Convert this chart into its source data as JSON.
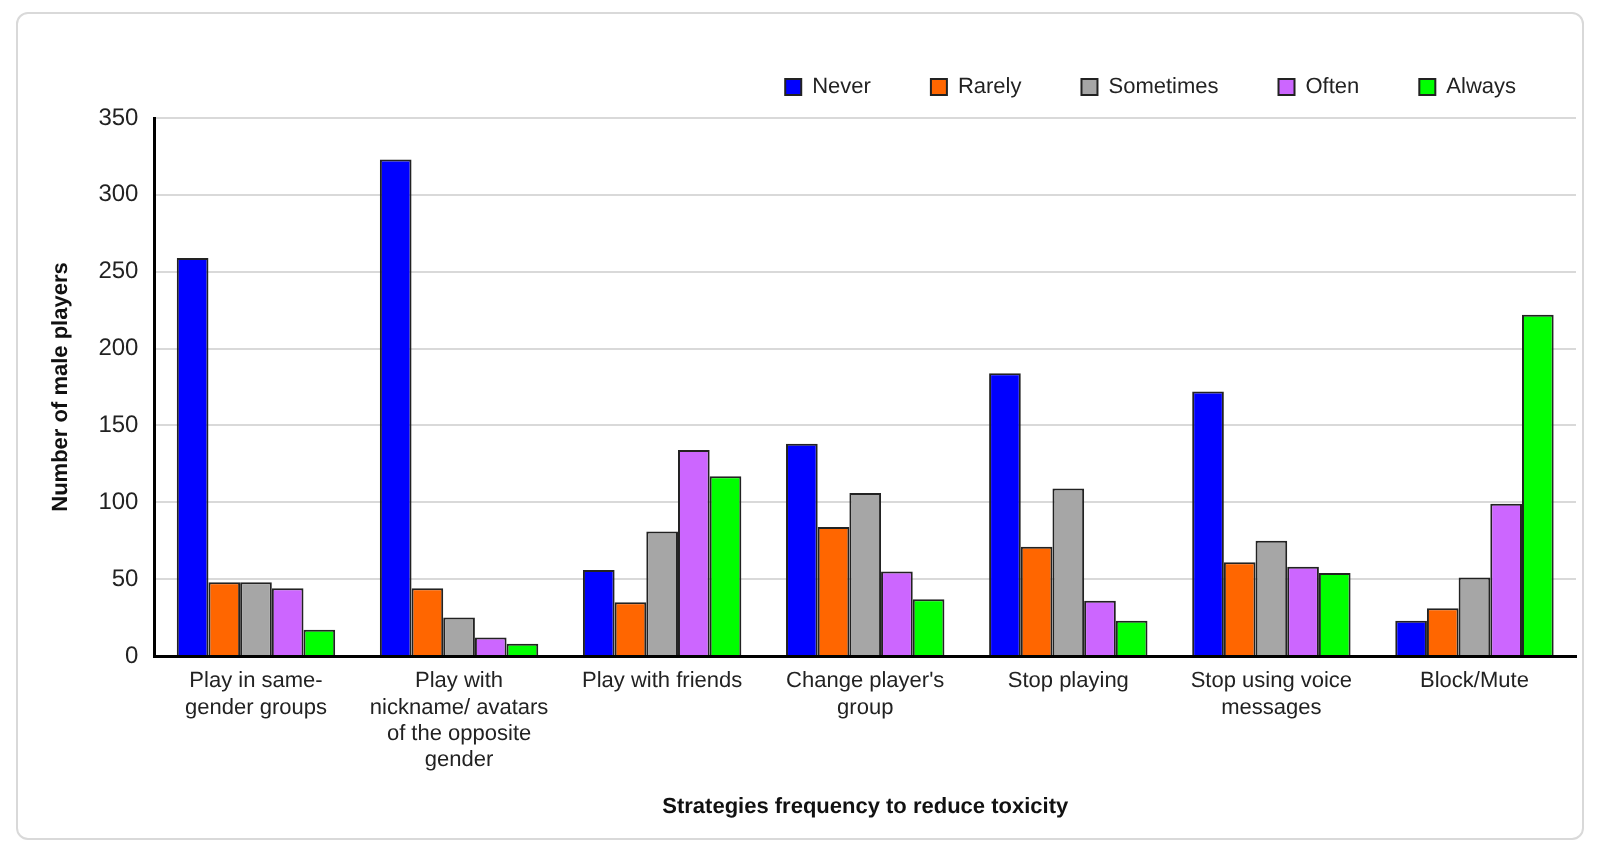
{
  "chart_data": {
    "type": "bar",
    "xlabel": "Strategies frequency to reduce toxicity",
    "ylabel": "Number of male players",
    "categories": [
      "Play in same-gender groups",
      "Play with nickname/ avatars of the opposite gender",
      "Play with friends",
      "Change player's group",
      "Stop playing",
      "Stop using voice messages",
      "Block/Mute"
    ],
    "series": [
      {
        "name": "Never",
        "color": "#0000ff",
        "values": [
          259,
          323,
          56,
          138,
          184,
          172,
          23
        ]
      },
      {
        "name": "Rarely",
        "color": "#ff6600",
        "values": [
          48,
          44,
          35,
          84,
          71,
          61,
          31
        ]
      },
      {
        "name": "Sometimes",
        "color": "#a6a6a6",
        "values": [
          48,
          25,
          81,
          106,
          109,
          75,
          51
        ]
      },
      {
        "name": "Often",
        "color": "#cc66ff",
        "values": [
          44,
          12,
          134,
          55,
          36,
          58,
          99
        ]
      },
      {
        "name": "Always",
        "color": "#00ff00",
        "values": [
          17,
          8,
          117,
          37,
          23,
          54,
          222
        ]
      }
    ],
    "ylim": [
      0,
      350
    ],
    "yticks": [
      0,
      50,
      100,
      150,
      200,
      250,
      300,
      350
    ],
    "grid": "y",
    "legend": "top"
  }
}
